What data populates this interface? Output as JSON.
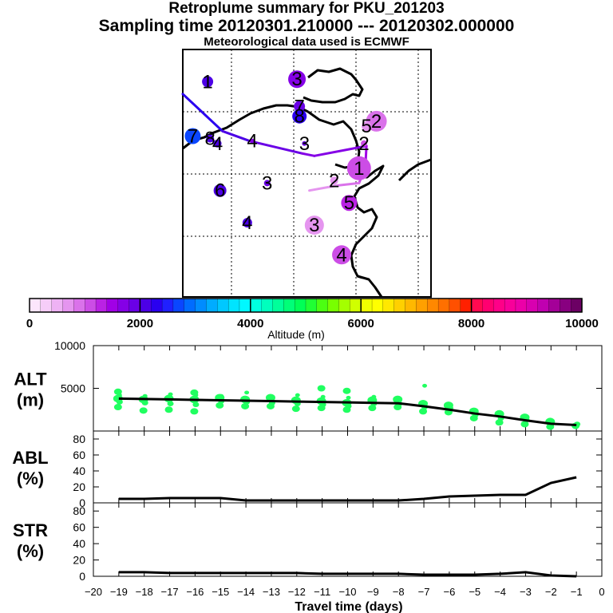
{
  "header": {
    "title": "Retroplume summary for PKU_201203",
    "sampling": "Sampling time   20120301.210000 --- 20120302.000000",
    "met": "Meteorological data used is ECMWF"
  },
  "colorbar": {
    "colors": [
      "#fce6fc",
      "#f6cdf8",
      "#eeb2f4",
      "#e595ef",
      "#da72ea",
      "#cc4de6",
      "#ba22e4",
      "#a100e6",
      "#8500e6",
      "#6a00e6",
      "#4c00e6",
      "#2a00f0",
      "#2020ff",
      "#0a46ff",
      "#006cff",
      "#008cff",
      "#00acff",
      "#00c8ff",
      "#00e4ff",
      "#00f8ff",
      "#00ffe0",
      "#00ffbd",
      "#00ff9a",
      "#00ff78",
      "#00ff56",
      "#20ff34",
      "#4cff12",
      "#78ff00",
      "#a4ff00",
      "#d0ff00",
      "#f0ff00",
      "#ffff00",
      "#ffe800",
      "#ffd000",
      "#ffb800",
      "#ffa000",
      "#ff8800",
      "#ff7000",
      "#ff5000",
      "#ff2000",
      "#ff0a50",
      "#ff0070",
      "#ff0088",
      "#f8009a",
      "#ec00a8",
      "#d800b0",
      "#c000b0",
      "#a40098",
      "#880080",
      "#6c0064"
    ],
    "ticks": [
      "0",
      "2000",
      "4000",
      "6000",
      "8000",
      "10000"
    ],
    "label": "Altitude  (m)"
  },
  "map": {
    "path_points": [
      [
        0.0,
        0.82
      ],
      [
        0.16,
        0.67
      ],
      [
        0.27,
        0.63
      ],
      [
        0.48,
        0.58
      ],
      [
        0.53,
        0.57
      ],
      [
        0.74,
        0.61
      ],
      [
        0.735,
        0.52
      ],
      [
        0.71,
        0.46
      ],
      [
        0.62,
        0.45
      ],
      [
        0.51,
        0.43
      ]
    ],
    "path_colors": [
      "#2a00f0",
      "#4c00e6",
      "#6a00e6",
      "#8500e6",
      "#8500e6",
      "#a100e6",
      "#cc4de6",
      "#da72ea",
      "#e595ef"
    ],
    "markers": [
      {
        "x": 0.1,
        "y": 0.87,
        "label": "1",
        "color": "#4c00e6",
        "size": 14
      },
      {
        "x": 0.46,
        "y": 0.88,
        "label": "3",
        "color": "#8500e6",
        "size": 22
      },
      {
        "x": 0.47,
        "y": 0.77,
        "label": "7",
        "color": "#6a00e6",
        "size": 14
      },
      {
        "x": 0.47,
        "y": 0.73,
        "label": "8",
        "color": "#2a00f0",
        "size": 18
      },
      {
        "x": 0.78,
        "y": 0.71,
        "label": "2",
        "color": "#da72ea",
        "size": 26
      },
      {
        "x": 0.74,
        "y": 0.69,
        "label": "5",
        "color": "#e595ef",
        "size": 12
      },
      {
        "x": 0.04,
        "y": 0.65,
        "label": "7",
        "color": "#0a46ff",
        "size": 20
      },
      {
        "x": 0.11,
        "y": 0.64,
        "label": "8",
        "color": "#4c00e6",
        "size": 10
      },
      {
        "x": 0.14,
        "y": 0.62,
        "label": "4",
        "color": "#4c00e6",
        "size": 10
      },
      {
        "x": 0.28,
        "y": 0.63,
        "label": "4",
        "color": "#8500e6",
        "size": 6
      },
      {
        "x": 0.49,
        "y": 0.62,
        "label": "3",
        "color": "#6a00e6",
        "size": 6
      },
      {
        "x": 0.73,
        "y": 0.62,
        "label": "2",
        "color": "#cc4de6",
        "size": 8
      },
      {
        "x": 0.71,
        "y": 0.52,
        "label": "1",
        "color": "#cc4de6",
        "size": 30
      },
      {
        "x": 0.61,
        "y": 0.47,
        "label": "2",
        "color": "#e595ef",
        "size": 10
      },
      {
        "x": 0.34,
        "y": 0.46,
        "label": "3",
        "color": "#6a00e6",
        "size": 8
      },
      {
        "x": 0.15,
        "y": 0.43,
        "label": "6",
        "color": "#4c00e6",
        "size": 16
      },
      {
        "x": 0.67,
        "y": 0.38,
        "label": "5",
        "color": "#ba22e4",
        "size": 20
      },
      {
        "x": 0.26,
        "y": 0.3,
        "label": "4",
        "color": "#4c00e6",
        "size": 12
      },
      {
        "x": 0.53,
        "y": 0.29,
        "label": "3",
        "color": "#e595ef",
        "size": 24
      },
      {
        "x": 0.64,
        "y": 0.17,
        "label": "4",
        "color": "#cc4de6",
        "size": 24
      }
    ]
  },
  "chart_data": [
    {
      "type": "scatter",
      "panel": "altitude",
      "ylabel": "ALT\n(m)",
      "ylabel_lines": [
        "ALT",
        "(m)"
      ],
      "ylim": [
        0,
        10000
      ],
      "y_ticks": [
        "10000",
        "5000"
      ],
      "xlim": [
        -20,
        0
      ],
      "x": [
        -19,
        -18,
        -17,
        -16,
        -15,
        -14,
        -13,
        -12,
        -11,
        -10,
        -9,
        -8,
        -7,
        -6,
        -5,
        -4,
        -3,
        -2,
        -1
      ],
      "mean_line": [
        3800,
        3750,
        3700,
        3650,
        3600,
        3550,
        3500,
        3450,
        3400,
        3350,
        3300,
        3250,
        2900,
        2500,
        2050,
        1700,
        1250,
        850,
        700
      ],
      "clusters": [
        [
          2800,
          3400,
          3800,
          4200,
          4600
        ],
        [
          2400,
          3300,
          3700,
          4100
        ],
        [
          2500,
          3200,
          3800,
          4300
        ],
        [
          2300,
          3100,
          3700,
          4200,
          4500
        ],
        [
          3000,
          3500,
          3900,
          4100
        ],
        [
          2900,
          3400,
          3700,
          4500
        ],
        [
          2900,
          3300,
          3900
        ],
        [
          2600,
          3200,
          3600,
          4200
        ],
        [
          2700,
          3100,
          3500,
          4000,
          5000
        ],
        [
          2500,
          2900,
          3300,
          3900,
          4700
        ],
        [
          2700,
          3200,
          3600,
          4000
        ],
        [
          2800,
          3200,
          3700
        ],
        [
          2300,
          2800,
          3200,
          5300
        ],
        [
          2200,
          2700,
          3000
        ],
        [
          1500,
          1900,
          2300
        ],
        [
          1000,
          1500,
          2000
        ],
        [
          800,
          1300,
          1600
        ],
        [
          500,
          900,
          1100
        ],
        [
          600,
          800
        ]
      ]
    },
    {
      "type": "line",
      "panel": "abl",
      "ylabel_lines": [
        "ABL",
        "(%)"
      ],
      "ylim": [
        0,
        90
      ],
      "y_ticks": [
        "80",
        "60",
        "40",
        "20",
        "0"
      ],
      "xlim": [
        -20,
        0
      ],
      "x": [
        -19,
        -18,
        -17,
        -16,
        -15,
        -14,
        -13,
        -12,
        -11,
        -10,
        -9,
        -8,
        -7,
        -6,
        -5,
        -4,
        -3,
        -2,
        -1
      ],
      "values": [
        5,
        5,
        6,
        6,
        6,
        3,
        3,
        3,
        3,
        3,
        3,
        3,
        5,
        8,
        9,
        10,
        10,
        25,
        32
      ]
    },
    {
      "type": "line",
      "panel": "str",
      "ylabel_lines": [
        "STR",
        "(%)"
      ],
      "ylim": [
        0,
        90
      ],
      "y_ticks": [
        "80",
        "60",
        "40",
        "20",
        "0"
      ],
      "xlim": [
        -20,
        0
      ],
      "x": [
        -19,
        -18,
        -17,
        -16,
        -15,
        -14,
        -13,
        -12,
        -11,
        -10,
        -9,
        -8,
        -7,
        -6,
        -5,
        -4,
        -3,
        -2,
        -1
      ],
      "values": [
        5,
        5,
        4,
        4,
        4,
        4,
        4,
        4,
        3,
        3,
        3,
        3,
        2,
        2,
        2,
        3,
        5,
        1,
        0
      ]
    }
  ],
  "xaxis": {
    "ticks": [
      "−20",
      "−19",
      "−18",
      "−17",
      "−16",
      "−15",
      "−14",
      "−13",
      "−12",
      "−11",
      "−10",
      "−9",
      "−8",
      "−7",
      "−6",
      "−5",
      "−4",
      "−3",
      "−2",
      "−1",
      "0"
    ],
    "label": "Travel time (days)"
  }
}
